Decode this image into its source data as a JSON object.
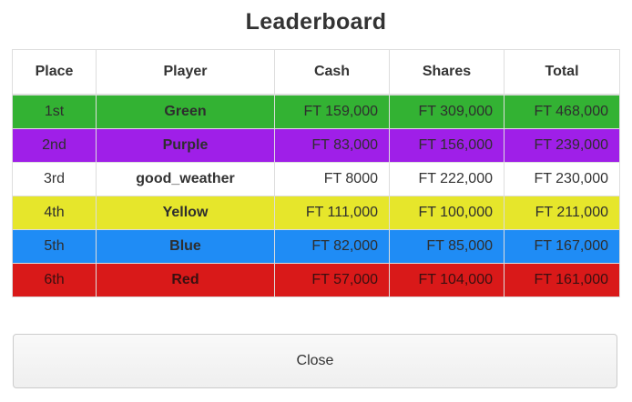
{
  "dialog": {
    "title": "Leaderboard",
    "close_label": "Close"
  },
  "table": {
    "headers": [
      "Place",
      "Player",
      "Cash",
      "Shares",
      "Total"
    ],
    "rows": [
      {
        "place": "1st",
        "player": "Green",
        "cash": "FT 159,000",
        "shares": "FT 309,000",
        "total": "FT 468,000",
        "bg": "#33b233",
        "fg": "#2e2e2e"
      },
      {
        "place": "2nd",
        "player": "Purple",
        "cash": "FT 83,000",
        "shares": "FT 156,000",
        "total": "FT 239,000",
        "bg": "#9f1fe8",
        "fg": "#2e2e2e"
      },
      {
        "place": "3rd",
        "player": "good_weather",
        "cash": "FT 8000",
        "shares": "FT 222,000",
        "total": "FT 230,000",
        "bg": "#ffffff",
        "fg": "#333333"
      },
      {
        "place": "4th",
        "player": "Yellow",
        "cash": "FT 111,000",
        "shares": "FT 100,000",
        "total": "FT 211,000",
        "bg": "#e6e62b",
        "fg": "#2e2e2e"
      },
      {
        "place": "5th",
        "player": "Blue",
        "cash": "FT 82,000",
        "shares": "FT 85,000",
        "total": "FT 167,000",
        "bg": "#1f8cf5",
        "fg": "#2e2e2e"
      },
      {
        "place": "6th",
        "player": "Red",
        "cash": "FT 57,000",
        "shares": "FT 104,000",
        "total": "FT 161,000",
        "bg": "#d91919",
        "fg": "#3a1010"
      }
    ]
  }
}
